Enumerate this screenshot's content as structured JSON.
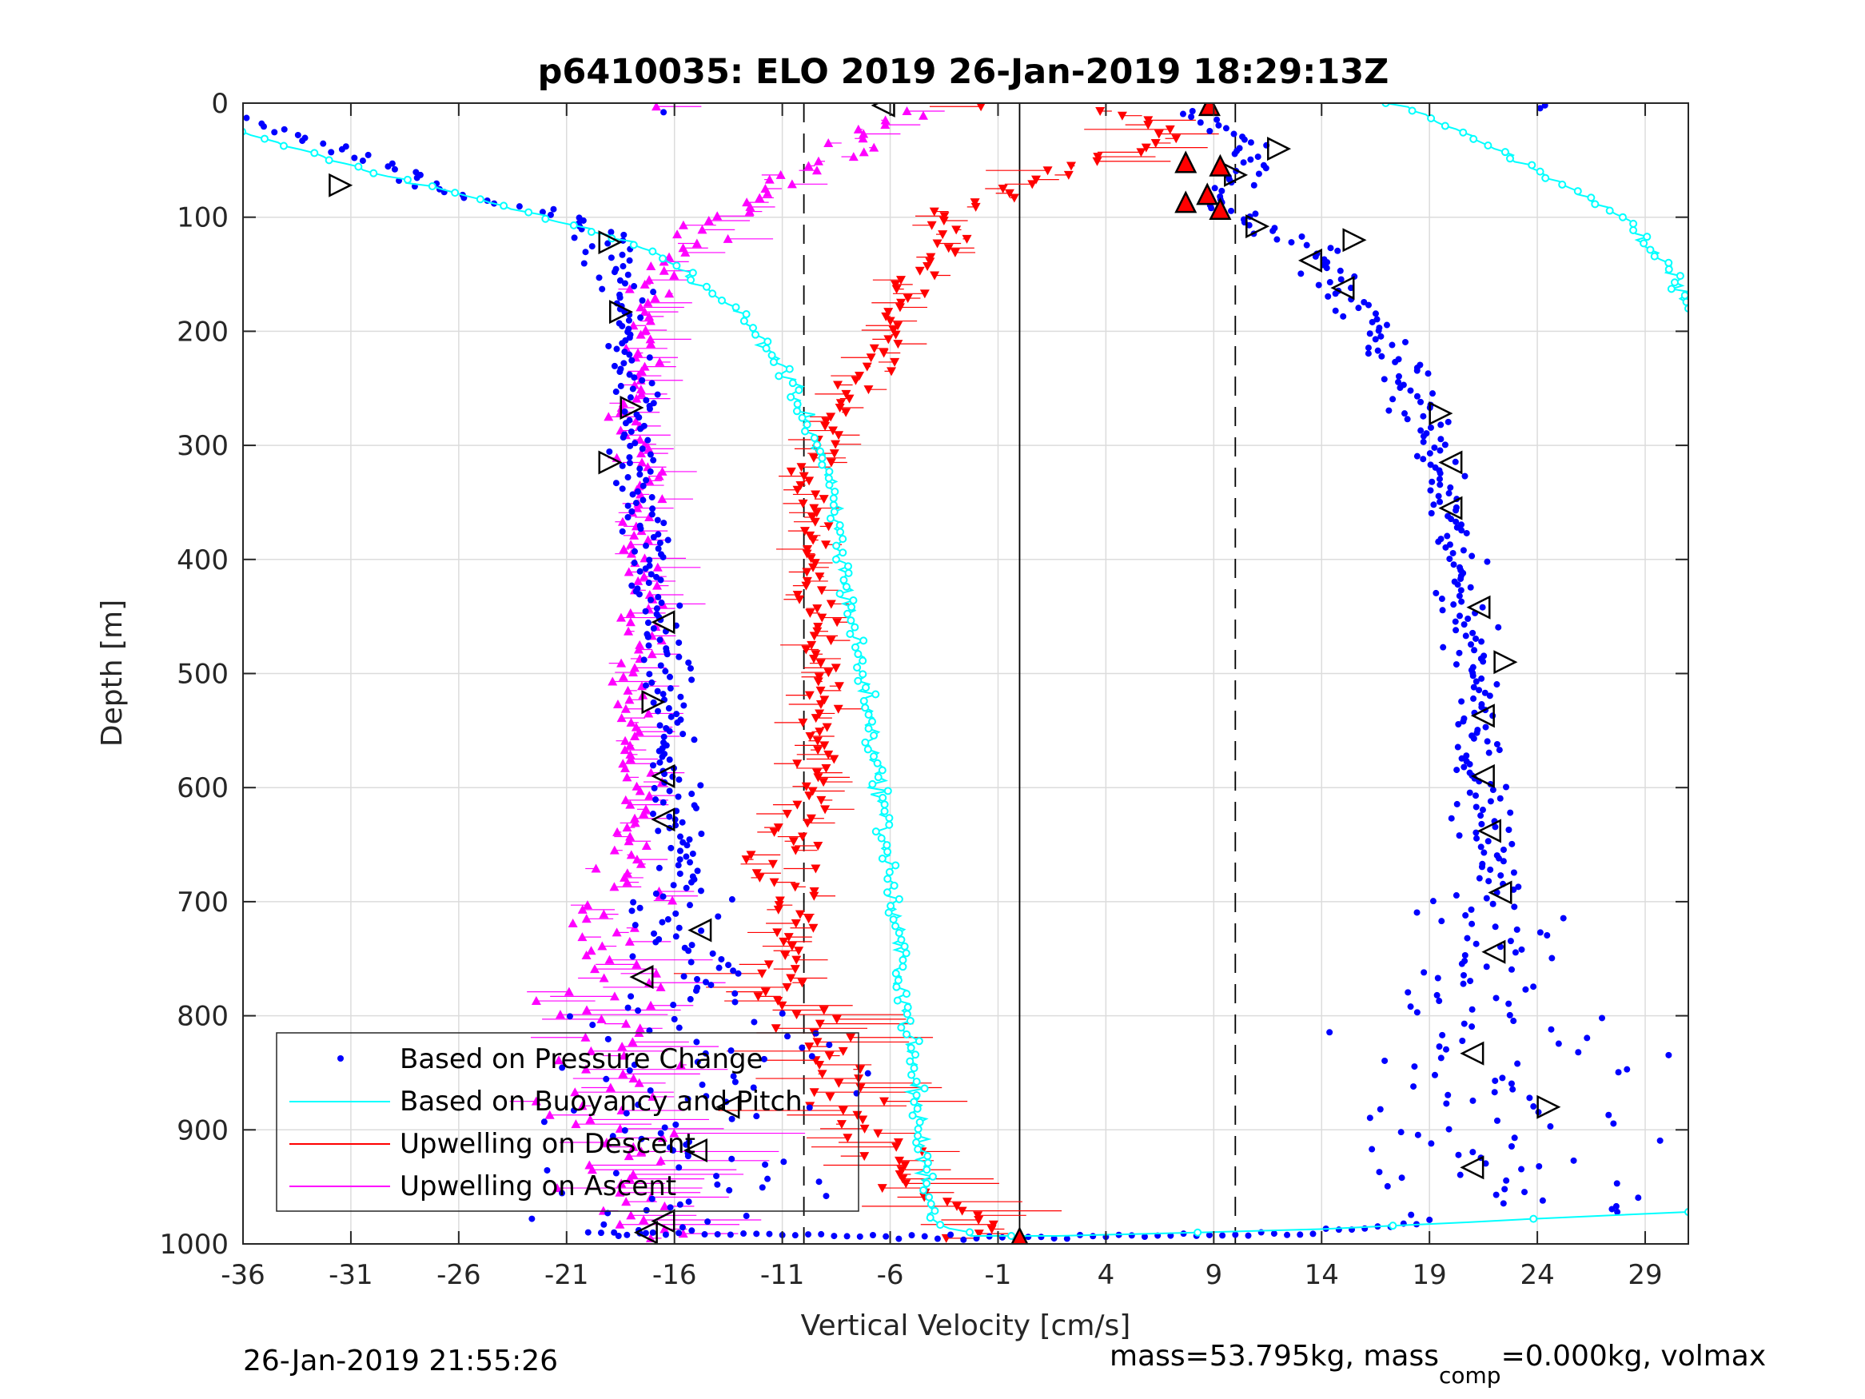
{
  "chart_data": {
    "type": "scatter",
    "title": "p6410035: ELO 2019 26-Jan-2019 18:29:13Z",
    "xlabel": "Vertical Velocity [cm/s]",
    "ylabel": "Depth [m]",
    "xlim": [
      -36,
      31
    ],
    "ylim": [
      1000,
      0
    ],
    "x_ticks": [
      -36,
      -31,
      -26,
      -21,
      -16,
      -11,
      -6,
      -1,
      4,
      9,
      14,
      19,
      24,
      29
    ],
    "x_tick_labels": [
      "-36",
      "-31",
      "-26",
      "-21",
      "-16",
      "-11",
      "-6",
      "-1",
      "4",
      "9",
      "14",
      "19",
      "24",
      "29"
    ],
    "y_ticks": [
      0,
      100,
      200,
      300,
      400,
      500,
      600,
      700,
      800,
      900,
      1000
    ],
    "y_tick_labels": [
      "0",
      "100",
      "200",
      "300",
      "400",
      "500",
      "600",
      "700",
      "800",
      "900",
      "1000"
    ],
    "grid": true,
    "y_reversed": true,
    "reference_lines": [
      {
        "x": -10,
        "style": "dashed"
      },
      {
        "x": 0,
        "style": "solid"
      },
      {
        "x": 10,
        "style": "dashed"
      }
    ],
    "legend_position": "bottom-left",
    "series": [
      {
        "name": "Based on Pressure Change",
        "marker": "dot",
        "color": "#0000ff",
        "descent_profile": [
          [
            -36,
            10
          ],
          [
            -33,
            30
          ],
          [
            -29,
            60
          ],
          [
            -26,
            80
          ],
          [
            -22,
            95
          ],
          [
            -19,
            120
          ],
          [
            -18.5,
            160
          ],
          [
            -18.3,
            200
          ],
          [
            -17.8,
            260
          ],
          [
            -18,
            320
          ],
          [
            -17.5,
            380
          ],
          [
            -17,
            440
          ],
          [
            -16.5,
            500
          ],
          [
            -16.3,
            560
          ],
          [
            -16.2,
            620
          ],
          [
            -15.5,
            700
          ],
          [
            -15,
            780
          ],
          [
            -14.5,
            860
          ],
          [
            -15,
            940
          ],
          [
            -17,
            990
          ]
        ],
        "ascent_profile": [
          [
            8,
            5
          ],
          [
            10,
            30
          ],
          [
            11,
            55
          ],
          [
            9,
            80
          ],
          [
            10,
            100
          ],
          [
            14,
            130
          ],
          [
            15,
            170
          ],
          [
            17,
            210
          ],
          [
            18,
            250
          ],
          [
            19,
            290
          ],
          [
            19.5,
            330
          ],
          [
            20,
            380
          ],
          [
            20.5,
            430
          ],
          [
            21,
            480
          ],
          [
            21.5,
            530
          ],
          [
            21.3,
            580
          ],
          [
            21.5,
            630
          ],
          [
            22,
            680
          ],
          [
            22,
            730
          ],
          [
            21.5,
            780
          ],
          [
            21.5,
            830
          ],
          [
            22,
            880
          ],
          [
            23,
            930
          ],
          [
            25,
            970
          ]
        ],
        "spread": [
          [
            -20,
            700,
            5
          ],
          [
            -19,
            850,
            7
          ],
          [
            20,
            800,
            5
          ],
          [
            20,
            900,
            9
          ]
        ],
        "bottom_line": [
          [
            -20,
            990
          ],
          [
            0,
            995
          ],
          [
            14,
            990
          ],
          [
            19,
            980
          ]
        ]
      },
      {
        "name": "Based on Buoyancy and Pitch",
        "marker": "line-circle",
        "color": "#00ffff",
        "descent_profile": [
          [
            -36,
            25
          ],
          [
            -32,
            50
          ],
          [
            -28,
            70
          ],
          [
            -24,
            90
          ],
          [
            -20,
            110
          ],
          [
            -17,
            130
          ],
          [
            -15,
            155
          ],
          [
            -13,
            185
          ],
          [
            -11,
            230
          ],
          [
            -10,
            270
          ],
          [
            -9,
            320
          ],
          [
            -8.5,
            370
          ],
          [
            -8,
            430
          ],
          [
            -7.5,
            480
          ],
          [
            -7,
            530
          ],
          [
            -6.5,
            600
          ],
          [
            -6,
            680
          ],
          [
            -5.5,
            760
          ],
          [
            -5,
            840
          ],
          [
            -4.5,
            920
          ],
          [
            -4,
            980
          ],
          [
            -2,
            993
          ],
          [
            2,
            993
          ],
          [
            14,
            987
          ],
          [
            31,
            972
          ]
        ],
        "ascent_profile": [
          [
            17,
            0
          ],
          [
            19,
            10
          ],
          [
            20,
            20
          ],
          [
            22,
            40
          ],
          [
            24,
            60
          ],
          [
            26,
            80
          ],
          [
            28,
            100
          ],
          [
            29,
            120
          ],
          [
            30,
            140
          ],
          [
            30.5,
            160
          ],
          [
            31,
            180
          ]
        ]
      },
      {
        "name": "Upwelling on Descent",
        "marker": "triangle-down",
        "color": "#ff0000",
        "profile": [
          [
            3,
            5
          ],
          [
            7,
            20
          ],
          [
            6,
            40
          ],
          [
            2,
            60
          ],
          [
            -1,
            80
          ],
          [
            -4,
            100
          ],
          [
            -3,
            120
          ],
          [
            -5,
            160
          ],
          [
            -6,
            200
          ],
          [
            -7,
            240
          ],
          [
            -8.5,
            280
          ],
          [
            -10,
            320
          ],
          [
            -9.5,
            360
          ],
          [
            -10,
            400
          ],
          [
            -9.5,
            440
          ],
          [
            -9.2,
            480
          ],
          [
            -9,
            520
          ],
          [
            -9.2,
            560
          ],
          [
            -9.5,
            600
          ],
          [
            -10.5,
            640
          ],
          [
            -11,
            680
          ],
          [
            -10.5,
            720
          ],
          [
            -11,
            760
          ],
          [
            -10,
            800
          ],
          [
            -9,
            840
          ],
          [
            -8,
            880
          ],
          [
            -6,
            920
          ],
          [
            -4,
            960
          ],
          [
            -2,
            985
          ]
        ]
      },
      {
        "name": "Upwelling on Ascent",
        "marker": "triangle-up",
        "color": "#ff00ff",
        "profile": [
          [
            -5,
            5
          ],
          [
            -7,
            20
          ],
          [
            -8,
            40
          ],
          [
            -10,
            60
          ],
          [
            -12,
            80
          ],
          [
            -14,
            100
          ],
          [
            -15,
            120
          ],
          [
            -16.5,
            140
          ],
          [
            -17,
            170
          ],
          [
            -17.5,
            210
          ],
          [
            -18,
            250
          ],
          [
            -18,
            290
          ],
          [
            -17.5,
            330
          ],
          [
            -17.5,
            370
          ],
          [
            -17.3,
            420
          ],
          [
            -17.5,
            470
          ],
          [
            -18,
            520
          ],
          [
            -18,
            570
          ],
          [
            -18,
            620
          ],
          [
            -18.5,
            670
          ],
          [
            -18.5,
            720
          ],
          [
            -18.5,
            780
          ],
          [
            -19,
            840
          ],
          [
            -19,
            900
          ],
          [
            -18,
            960
          ],
          [
            -17,
            990
          ]
        ]
      }
    ],
    "open_triangle_markers": [
      {
        "x": -6.3,
        "y": 2,
        "dir": "left"
      },
      {
        "x": -31.5,
        "y": 72,
        "dir": "right"
      },
      {
        "x": -19,
        "y": 122,
        "dir": "right"
      },
      {
        "x": -18.5,
        "y": 183,
        "dir": "right"
      },
      {
        "x": -18,
        "y": 267,
        "dir": "right"
      },
      {
        "x": -19,
        "y": 315,
        "dir": "right"
      },
      {
        "x": -16.5,
        "y": 455,
        "dir": "left"
      },
      {
        "x": -17,
        "y": 525,
        "dir": "right"
      },
      {
        "x": -16.5,
        "y": 590,
        "dir": "left"
      },
      {
        "x": -16.5,
        "y": 628,
        "dir": "left"
      },
      {
        "x": -14.8,
        "y": 725,
        "dir": "left"
      },
      {
        "x": -17.5,
        "y": 766,
        "dir": "left"
      },
      {
        "x": -13.5,
        "y": 880,
        "dir": "left"
      },
      {
        "x": -15,
        "y": 918,
        "dir": "left"
      },
      {
        "x": -16.5,
        "y": 980,
        "dir": "left"
      },
      {
        "x": -17.3,
        "y": 990,
        "dir": "left"
      },
      {
        "x": 12,
        "y": 40,
        "dir": "right"
      },
      {
        "x": 10,
        "y": 63,
        "dir": "right"
      },
      {
        "x": 11,
        "y": 108,
        "dir": "right"
      },
      {
        "x": 15.5,
        "y": 120,
        "dir": "right"
      },
      {
        "x": 13.5,
        "y": 138,
        "dir": "left"
      },
      {
        "x": 15,
        "y": 162,
        "dir": "left"
      },
      {
        "x": 19.5,
        "y": 272,
        "dir": "right"
      },
      {
        "x": 20,
        "y": 315,
        "dir": "left"
      },
      {
        "x": 20,
        "y": 355,
        "dir": "left"
      },
      {
        "x": 21.3,
        "y": 442,
        "dir": "left"
      },
      {
        "x": 22.5,
        "y": 490,
        "dir": "right"
      },
      {
        "x": 21.5,
        "y": 537,
        "dir": "left"
      },
      {
        "x": 21.5,
        "y": 590,
        "dir": "left"
      },
      {
        "x": 21.8,
        "y": 638,
        "dir": "left"
      },
      {
        "x": 22.3,
        "y": 692,
        "dir": "left"
      },
      {
        "x": 22,
        "y": 744,
        "dir": "left"
      },
      {
        "x": 21,
        "y": 833,
        "dir": "left"
      },
      {
        "x": 24.5,
        "y": 880,
        "dir": "right"
      },
      {
        "x": 21,
        "y": 933,
        "dir": "left"
      }
    ],
    "filled_triangle_markers": [
      {
        "x": 8.8,
        "y": 2
      },
      {
        "x": 7.7,
        "y": 52
      },
      {
        "x": 9.3,
        "y": 55
      },
      {
        "x": 7.7,
        "y": 87
      },
      {
        "x": 8.7,
        "y": 80
      },
      {
        "x": 9.3,
        "y": 93
      },
      {
        "x": 0,
        "y": 995
      }
    ]
  },
  "footer": {
    "timestamp": "26-Jan-2019 21:55:26",
    "mass_text_1": "mass=53.795kg, mass",
    "mass_sub": "comp",
    "mass_text_2": "=0.000kg, volmax"
  },
  "colors": {
    "grid": "#dcdcdc",
    "axis": "#262626",
    "pressure": "#0000ff",
    "buoyancy": "#00ffff",
    "descent": "#ff0000",
    "ascent": "#ff00ff"
  }
}
